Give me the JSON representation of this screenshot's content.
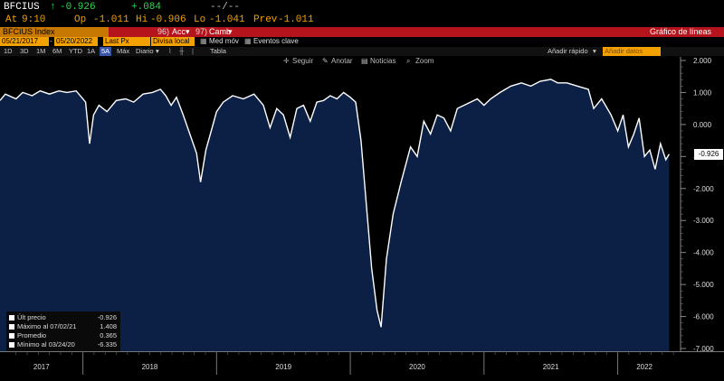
{
  "header": {
    "ticker": "BFCIUS",
    "arrow": "↑",
    "last": "-0.926",
    "change": "+.084",
    "dashes": "--/--",
    "at_label": "At",
    "at_time": "9:10",
    "op_label": "Op",
    "op": "-1.011",
    "hi_label": "Hi",
    "hi": "-0.906",
    "lo_label": "Lo",
    "lo": "-1.041",
    "prev_label": "Prev",
    "prev": "-1.011"
  },
  "titlebar": {
    "index": "BFCIUS Index",
    "acc_num": "96)",
    "acc": "Acc",
    "camb_num": "97)",
    "camb": "Camb",
    "chart_type": "Gráfico de líneas"
  },
  "controls": {
    "start_date": "05/21/2017",
    "end_date": "05/20/2022",
    "field": "Last Px",
    "currency": "Divisa local",
    "med_mov": "Med móv",
    "eventos": "Eventos clave"
  },
  "periods": {
    "items": [
      "1D",
      "3D",
      "1M",
      "6M",
      "YTD",
      "1A",
      "5A",
      "Máx"
    ],
    "selected_index": 6,
    "freq": "Diario",
    "tabla": "Tabla",
    "quick_add": "Añadir rápido",
    "add_data": "Añadir datos"
  },
  "chart_tools": {
    "seguir": "Seguir",
    "anotar": "Anotar",
    "noticias": "Noticias",
    "zoom": "Zoom"
  },
  "chart_data": {
    "type": "area",
    "y_ticks": [
      "2.000",
      "1.000",
      "0.000",
      "-1.000",
      "-2.000",
      "-3.000",
      "-4.000",
      "-5.000",
      "-6.000",
      "-7.000"
    ],
    "x_ticks": [
      "2017",
      "2018",
      "2019",
      "2020",
      "2021",
      "2022"
    ],
    "ylim": [
      -7.2,
      2.2
    ],
    "current_value_label": "-0.926",
    "series": [
      {
        "values": [
          [
            2017.38,
            0.75
          ],
          [
            2017.42,
            0.95
          ],
          [
            2017.5,
            0.8
          ],
          [
            2017.55,
            1.0
          ],
          [
            2017.62,
            0.9
          ],
          [
            2017.68,
            1.05
          ],
          [
            2017.75,
            0.95
          ],
          [
            2017.82,
            1.05
          ],
          [
            2017.88,
            1.0
          ],
          [
            2017.95,
            1.05
          ],
          [
            2018.02,
            0.7
          ],
          [
            2018.05,
            -0.6
          ],
          [
            2018.08,
            0.3
          ],
          [
            2018.12,
            0.6
          ],
          [
            2018.18,
            0.4
          ],
          [
            2018.25,
            0.75
          ],
          [
            2018.32,
            0.8
          ],
          [
            2018.38,
            0.7
          ],
          [
            2018.45,
            0.95
          ],
          [
            2018.52,
            1.0
          ],
          [
            2018.58,
            1.1
          ],
          [
            2018.62,
            0.9
          ],
          [
            2018.66,
            0.6
          ],
          [
            2018.7,
            0.85
          ],
          [
            2018.75,
            0.3
          ],
          [
            2018.8,
            -0.3
          ],
          [
            2018.85,
            -0.9
          ],
          [
            2018.88,
            -1.8
          ],
          [
            2018.92,
            -0.8
          ],
          [
            2018.96,
            -0.2
          ],
          [
            2019.0,
            0.4
          ],
          [
            2019.05,
            0.7
          ],
          [
            2019.12,
            0.9
          ],
          [
            2019.2,
            0.8
          ],
          [
            2019.28,
            0.95
          ],
          [
            2019.35,
            0.6
          ],
          [
            2019.4,
            -0.1
          ],
          [
            2019.45,
            0.5
          ],
          [
            2019.5,
            0.3
          ],
          [
            2019.55,
            -0.4
          ],
          [
            2019.6,
            0.5
          ],
          [
            2019.65,
            0.6
          ],
          [
            2019.7,
            0.1
          ],
          [
            2019.75,
            0.7
          ],
          [
            2019.8,
            0.75
          ],
          [
            2019.85,
            0.9
          ],
          [
            2019.9,
            0.8
          ],
          [
            2019.95,
            1.0
          ],
          [
            2020.0,
            0.85
          ],
          [
            2020.04,
            0.7
          ],
          [
            2020.08,
            -0.5
          ],
          [
            2020.12,
            -2.5
          ],
          [
            2020.16,
            -4.5
          ],
          [
            2020.2,
            -5.8
          ],
          [
            2020.23,
            -6.33
          ],
          [
            2020.27,
            -4.2
          ],
          [
            2020.32,
            -2.8
          ],
          [
            2020.38,
            -1.8
          ],
          [
            2020.45,
            -0.7
          ],
          [
            2020.5,
            -1.0
          ],
          [
            2020.55,
            0.1
          ],
          [
            2020.6,
            -0.3
          ],
          [
            2020.65,
            0.3
          ],
          [
            2020.7,
            0.2
          ],
          [
            2020.75,
            -0.2
          ],
          [
            2020.8,
            0.5
          ],
          [
            2020.85,
            0.6
          ],
          [
            2020.9,
            0.7
          ],
          [
            2020.95,
            0.8
          ],
          [
            2021.0,
            0.6
          ],
          [
            2021.05,
            0.8
          ],
          [
            2021.12,
            1.0
          ],
          [
            2021.2,
            1.2
          ],
          [
            2021.28,
            1.3
          ],
          [
            2021.35,
            1.2
          ],
          [
            2021.42,
            1.35
          ],
          [
            2021.5,
            1.41
          ],
          [
            2021.55,
            1.3
          ],
          [
            2021.62,
            1.3
          ],
          [
            2021.7,
            1.2
          ],
          [
            2021.78,
            1.1
          ],
          [
            2021.82,
            0.5
          ],
          [
            2021.88,
            0.8
          ],
          [
            2021.95,
            0.3
          ],
          [
            2022.0,
            -0.2
          ],
          [
            2022.04,
            0.3
          ],
          [
            2022.08,
            -0.7
          ],
          [
            2022.12,
            -0.3
          ],
          [
            2022.16,
            0.2
          ],
          [
            2022.2,
            -1.0
          ],
          [
            2022.24,
            -0.8
          ],
          [
            2022.28,
            -1.4
          ],
          [
            2022.32,
            -0.6
          ],
          [
            2022.36,
            -1.1
          ],
          [
            2022.385,
            -0.926
          ]
        ]
      }
    ],
    "legend": [
      {
        "label": "Últ precio",
        "value": "-0.926"
      },
      {
        "label": "Máximo al 07/02/21",
        "value": "1.408"
      },
      {
        "label": "Promedio",
        "value": "0.365"
      },
      {
        "label": "Mínimo al 03/24/20",
        "value": "-6.335"
      }
    ],
    "colors": {
      "area": "#0c1f45",
      "line": "#ffffff",
      "background": "#000000"
    }
  }
}
